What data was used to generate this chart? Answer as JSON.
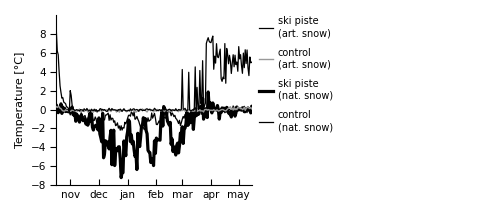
{
  "title": "",
  "ylabel": "Temperature [°C]",
  "ylim": [
    -8,
    10
  ],
  "yticks": [
    -8,
    -6,
    -4,
    -2,
    0,
    2,
    4,
    6,
    8
  ],
  "month_labels": [
    "nov",
    "dec",
    "jan",
    "feb",
    "mar",
    "apr",
    "may"
  ],
  "month_positions": [
    15,
    46,
    77,
    108,
    136,
    167,
    197
  ],
  "n_days": 212,
  "background_color": "#ffffff"
}
